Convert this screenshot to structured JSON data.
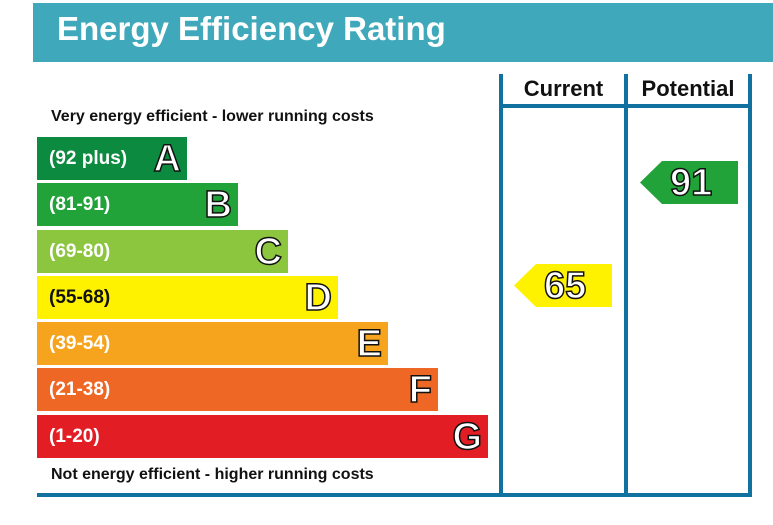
{
  "title": "Energy Efficiency Rating",
  "top_caption": "Very energy efficient - lower running costs",
  "bottom_caption": "Not energy efficient - higher running costs",
  "columns": {
    "current": "Current",
    "potential": "Potential"
  },
  "chart_data": {
    "type": "bar",
    "title": "Energy Efficiency Rating",
    "bands": [
      {
        "letter": "A",
        "range": "(92 plus)",
        "color": "#0c8a3f"
      },
      {
        "letter": "B",
        "range": "(81-91)",
        "color": "#21a33a"
      },
      {
        "letter": "C",
        "range": "(69-80)",
        "color": "#8cc63e"
      },
      {
        "letter": "D",
        "range": "(55-68)",
        "color": "#fff200"
      },
      {
        "letter": "E",
        "range": "(39-54)",
        "color": "#f6a41e"
      },
      {
        "letter": "F",
        "range": "(21-38)",
        "color": "#ee6724"
      },
      {
        "letter": "G",
        "range": "(1-20)",
        "color": "#e31d24"
      }
    ],
    "current": {
      "value": "65",
      "band": "D",
      "color": "#fff200"
    },
    "potential": {
      "value": "91",
      "band": "B",
      "color": "#21a33a"
    }
  }
}
